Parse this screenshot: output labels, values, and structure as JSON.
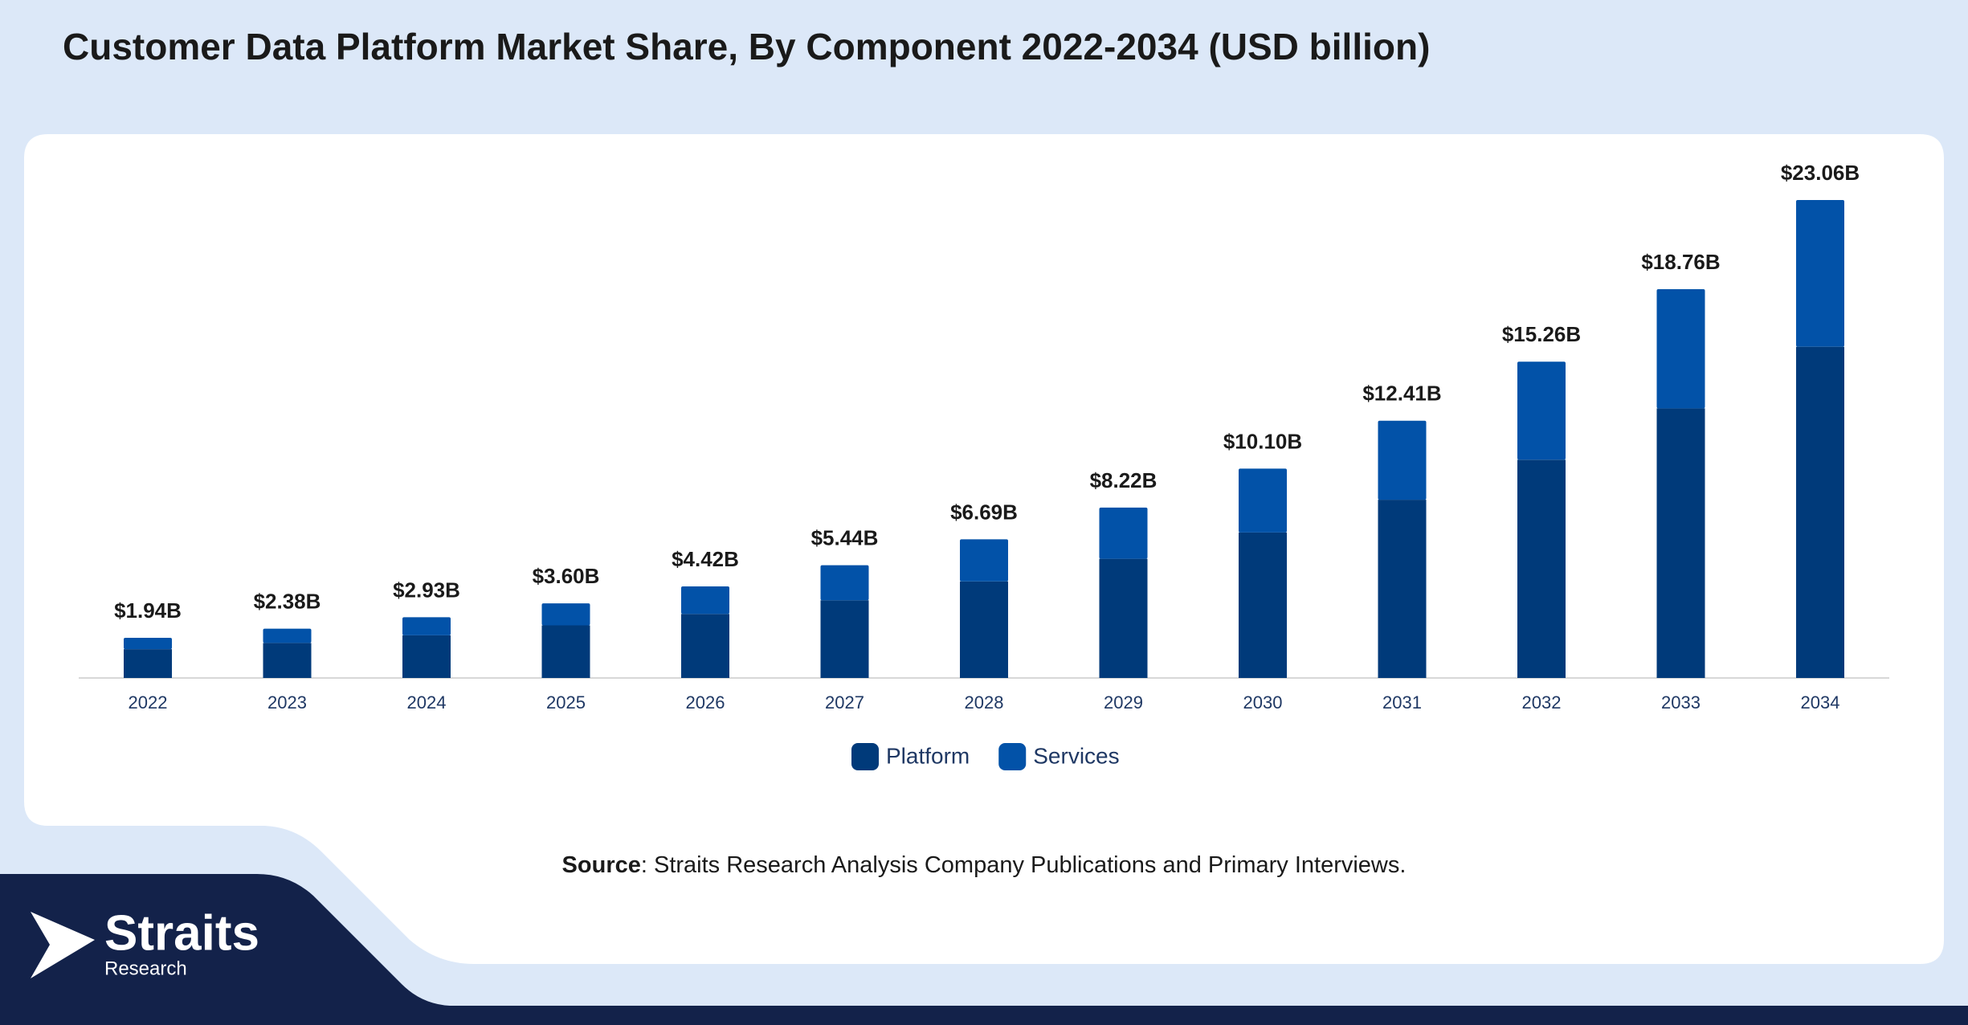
{
  "chart_data": {
    "type": "stacked-bar",
    "title": "Customer Data Platform Market Share, By Component 2022-2034 (USD billion)",
    "categories": [
      "2022",
      "2023",
      "2024",
      "2025",
      "2026",
      "2027",
      "2028",
      "2029",
      "2030",
      "2031",
      "2032",
      "2033",
      "2034"
    ],
    "series": [
      {
        "name": "Platform",
        "color": "#003a7a",
        "values": [
          1.39,
          1.69,
          2.06,
          2.54,
          3.09,
          3.75,
          4.66,
          5.75,
          7.02,
          8.6,
          10.53,
          13.01,
          15.98
        ]
      },
      {
        "name": "Services",
        "color": "#0252a8",
        "values": [
          0.55,
          0.69,
          0.87,
          1.06,
          1.33,
          1.69,
          2.03,
          2.47,
          3.08,
          3.81,
          4.73,
          5.75,
          7.08
        ]
      }
    ],
    "totals": {
      "values": [
        1.94,
        2.38,
        2.93,
        3.6,
        4.42,
        5.44,
        6.69,
        8.22,
        10.1,
        12.41,
        15.26,
        18.76,
        23.06
      ],
      "value_labels": [
        "$1.94B",
        "$2.38B",
        "$2.93B",
        "$3.60B",
        "$4.42B",
        "$5.44B",
        "$6.69B",
        "$8.22B",
        "$10.10B",
        "$12.41B",
        "$15.26B",
        "$18.76B",
        "$23.06B"
      ]
    },
    "legend": "bottom",
    "source_label": "Source",
    "source_text": ": Straits Research Analysis Company Publications and Primary Interviews.",
    "logo": {
      "name": "Straits",
      "subtitle": "Research"
    }
  }
}
